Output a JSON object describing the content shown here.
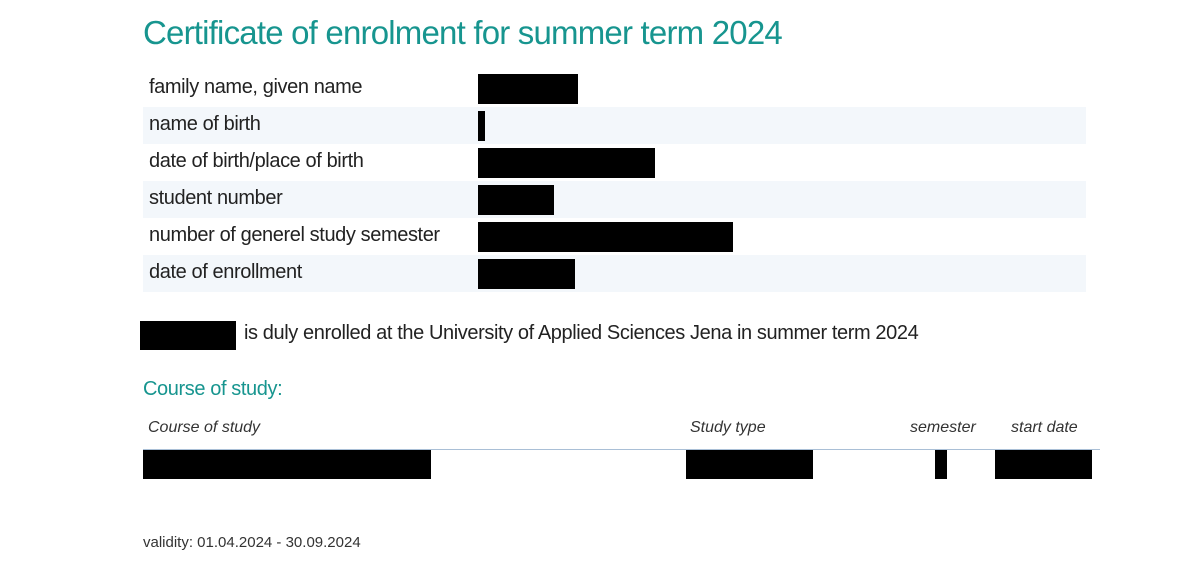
{
  "header": {
    "title": "Certificate of enrolment for summer term 2024"
  },
  "fields": [
    "family name, given name",
    "name of birth",
    "date of birth/place of birth",
    "student number",
    "number of generel study semester",
    "date of enrollment"
  ],
  "statement": "is duly enrolled at the University of Applied Sciences Jena in summer term 2024",
  "course_section": {
    "title": "Course of study:",
    "columns": [
      "Course of study",
      "Study type",
      "semester",
      "start date"
    ]
  },
  "footer": {
    "validity": "validity: 01.04.2024 - 30.09.2024"
  }
}
